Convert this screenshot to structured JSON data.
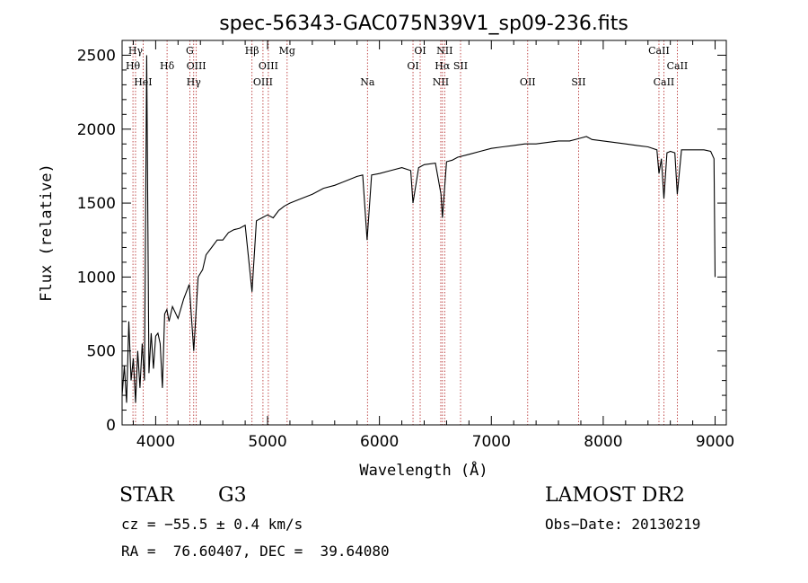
{
  "chart_data": {
    "type": "line",
    "title": "spec-56343-GAC075N39V1_sp09-236.fits",
    "xlabel": "Wavelength (Å)",
    "ylabel": "Flux (relative)",
    "xlim": [
      3700,
      9100
    ],
    "ylim": [
      0,
      2600
    ],
    "xticks": [
      4000,
      5000,
      6000,
      7000,
      8000,
      9000
    ],
    "yticks": [
      0,
      500,
      1000,
      1500,
      2000,
      2500
    ],
    "grid": false,
    "series": [
      {
        "x": [
          3700,
          3720,
          3740,
          3760,
          3780,
          3800,
          3820,
          3840,
          3860,
          3880,
          3900,
          3920,
          3940,
          3960,
          3980,
          4000,
          4020,
          4040,
          4060,
          4080,
          4100,
          4120,
          4150,
          4200,
          4250,
          4300,
          4340,
          4380,
          4420,
          4450,
          4500,
          4550,
          4600,
          4650,
          4700,
          4750,
          4800,
          4861,
          4900,
          4950,
          5000,
          5050,
          5100,
          5150,
          5200,
          5300,
          5400,
          5500,
          5600,
          5700,
          5800,
          5850,
          5890,
          5930,
          6000,
          6100,
          6200,
          6280,
          6300,
          6350,
          6400,
          6500,
          6550,
          6563,
          6600,
          6650,
          6700,
          6800,
          6900,
          7000,
          7100,
          7200,
          7300,
          7400,
          7500,
          7600,
          7700,
          7800,
          7850,
          7900,
          8000,
          8100,
          8200,
          8300,
          8400,
          8480,
          8498,
          8520,
          8542,
          8570,
          8600,
          8640,
          8662,
          8700,
          8800,
          8900,
          8960,
          8990,
          9000
        ],
        "y": [
          200,
          400,
          150,
          700,
          300,
          450,
          150,
          500,
          250,
          550,
          300,
          2500,
          350,
          620,
          380,
          600,
          620,
          550,
          250,
          750,
          780,
          700,
          800,
          720,
          850,
          950,
          500,
          1000,
          1050,
          1150,
          1200,
          1250,
          1250,
          1300,
          1320,
          1330,
          1350,
          900,
          1380,
          1400,
          1420,
          1400,
          1450,
          1480,
          1500,
          1530,
          1560,
          1600,
          1620,
          1650,
          1680,
          1690,
          1250,
          1690,
          1700,
          1720,
          1740,
          1720,
          1500,
          1740,
          1760,
          1770,
          1560,
          1400,
          1780,
          1790,
          1810,
          1830,
          1850,
          1870,
          1880,
          1890,
          1900,
          1900,
          1910,
          1920,
          1920,
          1940,
          1950,
          1930,
          1920,
          1910,
          1900,
          1890,
          1880,
          1860,
          1700,
          1800,
          1530,
          1840,
          1850,
          1840,
          1560,
          1860,
          1860,
          1860,
          1850,
          1800,
          1000
        ]
      }
    ],
    "lines": [
      {
        "name": "Hγ",
        "x": 3820,
        "row": 0
      },
      {
        "name": "Hθ",
        "x": 3797,
        "row": 1
      },
      {
        "name": "HeI",
        "x": 3888,
        "row": 2
      },
      {
        "name": "Hδ",
        "x": 4102,
        "row": 1
      },
      {
        "name": "G",
        "x": 4305,
        "row": 0
      },
      {
        "name": "OIII",
        "x": 4363,
        "row": 1
      },
      {
        "name": "Hγ",
        "x": 4340,
        "row": 2
      },
      {
        "name": "Hβ",
        "x": 4861,
        "row": 0
      },
      {
        "name": "OIII",
        "x": 5007,
        "row": 1
      },
      {
        "name": "OIII",
        "x": 4959,
        "row": 2
      },
      {
        "name": "Mg",
        "x": 5175,
        "row": 0
      },
      {
        "name": "Na",
        "x": 5893,
        "row": 2
      },
      {
        "name": "OI",
        "x": 6364,
        "row": 0
      },
      {
        "name": "OI",
        "x": 6300,
        "row": 1
      },
      {
        "name": "NII",
        "x": 6583,
        "row": 0
      },
      {
        "name": "Hα",
        "x": 6563,
        "row": 1
      },
      {
        "name": "SII",
        "x": 6725,
        "row": 1
      },
      {
        "name": "NII",
        "x": 6548,
        "row": 2
      },
      {
        "name": "OII",
        "x": 7325,
        "row": 2
      },
      {
        "name": "SII",
        "x": 7780,
        "row": 2
      },
      {
        "name": "CaII",
        "x": 8498,
        "row": 0
      },
      {
        "name": "CaII",
        "x": 8662,
        "row": 1
      },
      {
        "name": "CaII",
        "x": 8542,
        "row": 2
      }
    ]
  },
  "info": {
    "object_type": "STAR",
    "subclass": "G3",
    "survey": "LAMOST DR2",
    "redshift": "cz = −55.5 ± 0.4 km/s",
    "obs_date": "Obs−Date: 20130219",
    "coords": "RA =  76.60407, DEC =  39.64080"
  }
}
